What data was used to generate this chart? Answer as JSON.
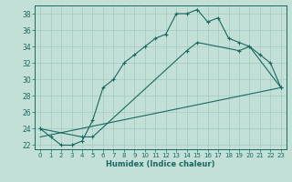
{
  "xlabel": "Humidex (Indice chaleur)",
  "ylabel": "",
  "background_color": "#c2e0d8",
  "grid_color": "#a8ccc4",
  "line_color": "#1a6860",
  "xlim": [
    -0.5,
    23.5
  ],
  "ylim": [
    21.5,
    39.0
  ],
  "xticks": [
    0,
    1,
    2,
    3,
    4,
    5,
    6,
    7,
    8,
    9,
    10,
    11,
    12,
    13,
    14,
    15,
    16,
    17,
    18,
    19,
    20,
    21,
    22,
    23
  ],
  "yticks": [
    22,
    24,
    26,
    28,
    30,
    32,
    34,
    36,
    38
  ],
  "curve1_x": [
    0,
    1,
    2,
    3,
    4,
    5,
    6,
    7,
    8,
    9,
    10,
    11,
    12,
    13,
    14,
    15,
    16,
    17,
    18,
    19,
    20,
    21,
    22,
    23
  ],
  "curve1_y": [
    24,
    23,
    22,
    22,
    22.5,
    25,
    29,
    30,
    32,
    33,
    34,
    35,
    35.5,
    38,
    38,
    38.5,
    37,
    37.5,
    35,
    34.5,
    34,
    33,
    32,
    29
  ],
  "curve2_x": [
    0,
    4,
    5,
    14,
    15,
    19,
    20,
    23
  ],
  "curve2_y": [
    24,
    23,
    23,
    33.5,
    34.5,
    33.5,
    34,
    29
  ],
  "curve3_x": [
    0,
    23
  ],
  "curve3_y": [
    23,
    29
  ]
}
